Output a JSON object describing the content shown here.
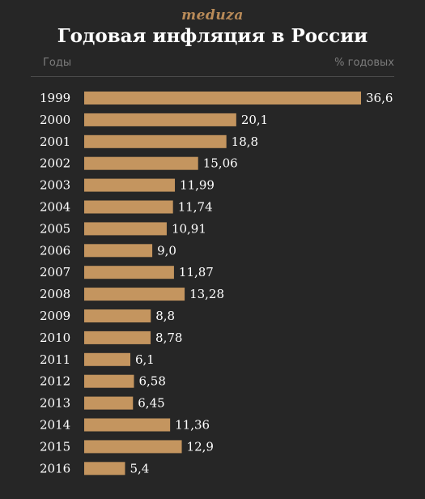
{
  "brand": "meduza",
  "chart_data": {
    "type": "bar",
    "orientation": "horizontal",
    "title": "Годовая инфляция в России",
    "category_header": "Годы",
    "value_header": "% годовых",
    "categories": [
      "1999",
      "2000",
      "2001",
      "2002",
      "2003",
      "2004",
      "2005",
      "2006",
      "2007",
      "2008",
      "2009",
      "2010",
      "2011",
      "2012",
      "2013",
      "2014",
      "2015",
      "2016"
    ],
    "values": [
      36.6,
      20.1,
      18.8,
      15.06,
      11.99,
      11.74,
      10.91,
      9.0,
      11.87,
      13.28,
      8.8,
      8.78,
      6.1,
      6.58,
      6.45,
      11.36,
      12.9,
      5.4
    ],
    "value_labels": [
      "36,6",
      "20,1",
      "18,8",
      "15,06",
      "11,99",
      "11,74",
      "10,91",
      "9,0",
      "11,87",
      "13,28",
      "8,8",
      "8,78",
      "6,1",
      "6,58",
      "6,45",
      "11,36",
      "12,9",
      "5,4"
    ],
    "xlim": [
      0,
      36.6
    ],
    "grid": false,
    "bar_color": "#c4955f",
    "background": "#262626"
  }
}
